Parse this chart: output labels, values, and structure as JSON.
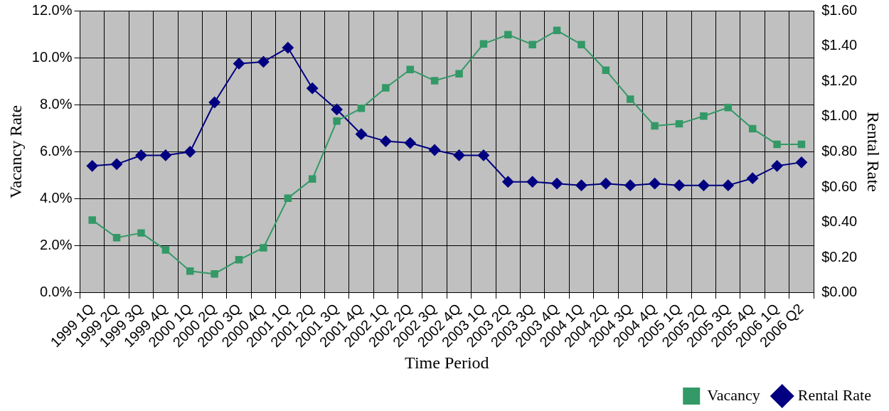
{
  "chart_data": {
    "type": "line",
    "xlabel": "Time Period",
    "ylabel": "Vacancy Rate",
    "y2label": "Rental Rate",
    "categories": [
      "1999 1Q",
      "1999 2Q",
      "1999 3Q",
      "1999 4Q",
      "2000 1Q",
      "2000 2Q",
      "2000 3Q",
      "2000 4Q",
      "2001 1Q",
      "2001 2Q",
      "2001 3Q",
      "2001 4Q",
      "2002 1Q",
      "2002 2Q",
      "2002 3Q",
      "2002 4Q",
      "2003 1Q",
      "2003 2Q",
      "2003 3Q",
      "2003 4Q",
      "2004 1Q",
      "2004 2Q",
      "2004 3Q",
      "2004 4Q",
      "2005 1Q",
      "2005 2Q",
      "2005 3Q",
      "2005 4Q",
      "2006 1Q",
      "2006 Q2"
    ],
    "series": [
      {
        "name": "Vacancy",
        "color": "#339966",
        "marker": "square",
        "values": [
          3.1,
          2.35,
          2.55,
          1.83,
          0.93,
          0.81,
          1.41,
          1.92,
          4.03,
          4.84,
          7.31,
          7.85,
          8.72,
          9.5,
          9.02,
          9.32,
          10.59,
          10.98,
          10.56,
          11.16,
          10.56,
          9.47,
          8.24,
          7.1,
          7.19,
          7.52,
          7.88,
          6.98,
          6.32,
          6.32
        ]
      },
      {
        "name": "Rental Rate",
        "color": "#000080",
        "marker": "diamond",
        "axis": "y2",
        "values": [
          0.72,
          0.73,
          0.78,
          0.78,
          0.8,
          1.08,
          1.3,
          1.31,
          1.39,
          1.16,
          1.04,
          0.9,
          0.86,
          0.85,
          0.81,
          0.78,
          0.78,
          0.63,
          0.63,
          0.62,
          0.61,
          0.62,
          0.61,
          0.62,
          0.61,
          0.61,
          0.61,
          0.65,
          0.72,
          0.74
        ]
      }
    ],
    "ylim": [
      0,
      12
    ],
    "yticks": [
      {
        "value": 0,
        "label": "0.0%"
      },
      {
        "value": 2,
        "label": "2.0%"
      },
      {
        "value": 4,
        "label": "4.0%"
      },
      {
        "value": 6,
        "label": "6.0%"
      },
      {
        "value": 8,
        "label": "8.0%"
      },
      {
        "value": 10,
        "label": "10.0%"
      },
      {
        "value": 12,
        "label": "12.0%"
      }
    ],
    "y2lim": [
      0,
      1.6
    ],
    "y2ticks": [
      {
        "value": 0,
        "label": "$0.00"
      },
      {
        "value": 0.2,
        "label": "$0.20"
      },
      {
        "value": 0.4,
        "label": "$0.40"
      },
      {
        "value": 0.6,
        "label": "$0.60"
      },
      {
        "value": 0.8,
        "label": "$0.80"
      },
      {
        "value": 1,
        "label": "$1.00"
      },
      {
        "value": 1.2,
        "label": "$1.20"
      },
      {
        "value": 1.4,
        "label": "$1.40"
      },
      {
        "value": 1.6,
        "label": "$1.60"
      }
    ],
    "grid": true,
    "legend": "bottom right",
    "line_style": "solid"
  }
}
